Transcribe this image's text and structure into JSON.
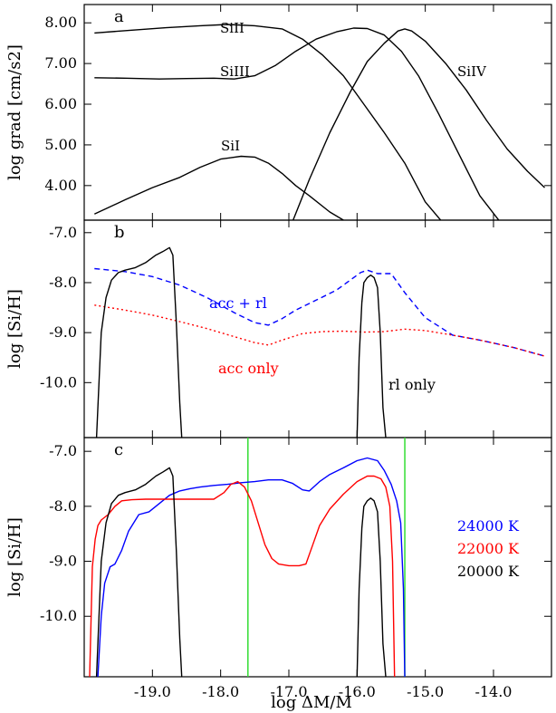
{
  "chart_data": [
    {
      "type": "line",
      "panel_label": "a",
      "ylabel": "log grad [cm/s2]",
      "xlim": [
        -20.0,
        -13.15
      ],
      "ylim": [
        3.15,
        8.45
      ],
      "yticks": [
        4.0,
        5.0,
        6.0,
        7.0,
        8.0
      ],
      "ytick_labels": [
        "4.00",
        "5.00",
        "6.00",
        "7.00",
        "8.00"
      ],
      "series": [
        {
          "name": "SiII",
          "color": "#000000",
          "x": [
            -19.85,
            -19.3,
            -18.8,
            -18.3,
            -17.9,
            -17.5,
            -17.1,
            -16.8,
            -16.5,
            -16.2,
            -15.9,
            -15.6,
            -15.3,
            -15.0,
            -14.75
          ],
          "y": [
            7.75,
            7.82,
            7.88,
            7.93,
            7.96,
            7.93,
            7.85,
            7.6,
            7.2,
            6.7,
            6.0,
            5.3,
            4.55,
            3.6,
            3.1
          ]
        },
        {
          "name": "SiIII",
          "color": "#000000",
          "x": [
            -19.85,
            -19.4,
            -18.9,
            -18.5,
            -18.1,
            -17.8,
            -17.5,
            -17.2,
            -16.9,
            -16.6,
            -16.3,
            -16.05,
            -15.85,
            -15.6,
            -15.35,
            -15.1,
            -14.8,
            -14.5,
            -14.2,
            -13.9
          ],
          "y": [
            6.65,
            6.64,
            6.62,
            6.63,
            6.64,
            6.62,
            6.7,
            6.95,
            7.3,
            7.6,
            7.78,
            7.87,
            7.86,
            7.7,
            7.3,
            6.7,
            5.75,
            4.75,
            3.75,
            3.1
          ]
        },
        {
          "name": "SiI",
          "color": "#000000",
          "x": [
            -19.85,
            -19.4,
            -19.0,
            -18.6,
            -18.3,
            -18.0,
            -17.7,
            -17.5,
            -17.3,
            -17.1,
            -16.9,
            -16.7,
            -16.4,
            -16.15
          ],
          "y": [
            3.3,
            3.65,
            3.95,
            4.2,
            4.45,
            4.65,
            4.72,
            4.7,
            4.55,
            4.3,
            4.0,
            3.75,
            3.35,
            3.1
          ]
        },
        {
          "name": "SiIV",
          "color": "#000000",
          "x": [
            -16.95,
            -16.7,
            -16.4,
            -16.1,
            -15.85,
            -15.6,
            -15.4,
            -15.3,
            -15.2,
            -15.0,
            -14.7,
            -14.4,
            -14.1,
            -13.8,
            -13.5,
            -13.25
          ],
          "y": [
            3.1,
            4.15,
            5.3,
            6.3,
            7.05,
            7.5,
            7.8,
            7.85,
            7.8,
            7.55,
            7.0,
            6.35,
            5.6,
            4.9,
            4.35,
            3.95
          ]
        }
      ],
      "labels": [
        "SiII",
        "SiIII",
        "SiI",
        "SiIV"
      ]
    },
    {
      "type": "line",
      "panel_label": "b",
      "ylabel": "log [Si/H]",
      "xlim": [
        -20.0,
        -13.15
      ],
      "ylim": [
        -11.1,
        -6.75
      ],
      "yticks": [
        -10.0,
        -9.0,
        -8.0,
        -7.0
      ],
      "ytick_labels": [
        "-10.0",
        "-9.0",
        "-8.0",
        "-7.0"
      ],
      "series": [
        {
          "name": "acc + rl",
          "color": "#0000ff",
          "dash": "dashed",
          "x": [
            -19.85,
            -19.4,
            -19.0,
            -18.6,
            -18.2,
            -17.8,
            -17.5,
            -17.3,
            -17.1,
            -16.9,
            -16.6,
            -16.3,
            -16.1,
            -15.95,
            -15.85,
            -15.7,
            -15.5,
            -15.3,
            -15.0,
            -14.6,
            -14.2,
            -13.7,
            -13.25
          ],
          "y": [
            -7.72,
            -7.78,
            -7.88,
            -8.05,
            -8.3,
            -8.6,
            -8.8,
            -8.85,
            -8.72,
            -8.55,
            -8.35,
            -8.15,
            -7.95,
            -7.8,
            -7.75,
            -7.82,
            -7.82,
            -8.2,
            -8.7,
            -9.05,
            -9.15,
            -9.3,
            -9.47
          ]
        },
        {
          "name": "acc only",
          "color": "#ff0000",
          "dash": "dotted",
          "x": [
            -19.85,
            -19.4,
            -19.0,
            -18.6,
            -18.2,
            -17.8,
            -17.5,
            -17.3,
            -17.1,
            -16.8,
            -16.5,
            -16.2,
            -15.9,
            -15.6,
            -15.3,
            -15.0,
            -14.6,
            -14.2,
            -13.7,
            -13.25
          ],
          "y": [
            -8.45,
            -8.55,
            -8.65,
            -8.78,
            -8.92,
            -9.08,
            -9.2,
            -9.25,
            -9.15,
            -9.02,
            -8.98,
            -8.97,
            -8.99,
            -8.98,
            -8.93,
            -8.96,
            -9.05,
            -9.15,
            -9.3,
            -9.47
          ]
        },
        {
          "name": "rl only",
          "color": "#000000",
          "dash": "solid",
          "x": [
            -19.82,
            -19.75,
            -19.68,
            -19.6,
            -19.5,
            -19.4,
            -19.25,
            -19.1,
            -18.95,
            -18.85,
            -18.75,
            -18.7,
            -18.65,
            -18.6,
            -18.57
          ],
          "y": [
            -11.1,
            -9.0,
            -8.3,
            -7.95,
            -7.8,
            -7.75,
            -7.7,
            -7.6,
            -7.45,
            -7.38,
            -7.3,
            -7.45,
            -8.8,
            -10.4,
            -11.1
          ]
        },
        {
          "name": "rl only (peak 2)",
          "color": "#000000",
          "dash": "solid",
          "x": [
            -16.0,
            -15.97,
            -15.93,
            -15.9,
            -15.85,
            -15.8,
            -15.75,
            -15.7,
            -15.66,
            -15.62,
            -15.58
          ],
          "y": [
            -11.1,
            -9.5,
            -8.4,
            -8.0,
            -7.9,
            -7.85,
            -7.9,
            -8.1,
            -9.0,
            -10.5,
            -11.1
          ]
        }
      ],
      "annotations": [
        "acc + rl",
        "acc only",
        "rl only"
      ]
    },
    {
      "type": "line",
      "panel_label": "c",
      "xlabel": "log  ΔM/M",
      "ylabel": "log [Si/H]",
      "xlim": [
        -20.0,
        -13.15
      ],
      "ylim": [
        -11.1,
        -6.75
      ],
      "yticks": [
        -10.0,
        -9.0,
        -8.0,
        -7.0
      ],
      "ytick_labels": [
        "-10.0",
        "-9.0",
        "-8.0",
        "-7.0"
      ],
      "xticks": [
        -19.0,
        -18.0,
        -17.0,
        -16.0,
        -15.0,
        -14.0
      ],
      "xtick_labels": [
        "-19.0",
        "-18.0",
        "-17.0",
        "-16.0",
        "-15.0",
        "-14.0"
      ],
      "vlines": [
        -17.6,
        -15.3
      ],
      "vline_color": "#33dd33",
      "series": [
        {
          "name": "24000 K",
          "color": "#0000ff",
          "x": [
            -19.8,
            -19.75,
            -19.7,
            -19.62,
            -19.55,
            -19.45,
            -19.35,
            -19.2,
            -19.05,
            -18.9,
            -18.75,
            -18.6,
            -18.45,
            -18.3,
            -18.1,
            -17.9,
            -17.7,
            -17.5,
            -17.3,
            -17.1,
            -16.95,
            -16.8,
            -16.7,
            -16.55,
            -16.4,
            -16.2,
            -16.0,
            -15.85,
            -15.7,
            -15.6,
            -15.5,
            -15.42,
            -15.36,
            -15.32,
            -15.3
          ],
          "y": [
            -11.1,
            -10.0,
            -9.4,
            -9.1,
            -9.05,
            -8.8,
            -8.45,
            -8.15,
            -8.1,
            -7.95,
            -7.8,
            -7.72,
            -7.68,
            -7.65,
            -7.62,
            -7.6,
            -7.57,
            -7.55,
            -7.52,
            -7.52,
            -7.58,
            -7.7,
            -7.72,
            -7.55,
            -7.42,
            -7.3,
            -7.17,
            -7.12,
            -7.17,
            -7.35,
            -7.6,
            -7.9,
            -8.3,
            -9.5,
            -11.1
          ]
        },
        {
          "name": "22000 K",
          "color": "#ff0000",
          "x": [
            -19.92,
            -19.88,
            -19.84,
            -19.8,
            -19.75,
            -19.65,
            -19.55,
            -19.45,
            -19.3,
            -19.1,
            -18.9,
            -18.7,
            -18.5,
            -18.3,
            -18.1,
            -17.95,
            -17.85,
            -17.75,
            -17.65,
            -17.55,
            -17.45,
            -17.35,
            -17.25,
            -17.15,
            -17.0,
            -16.85,
            -16.75,
            -16.65,
            -16.55,
            -16.4,
            -16.2,
            -16.0,
            -15.85,
            -15.75,
            -15.65,
            -15.58,
            -15.52,
            -15.48,
            -15.45
          ],
          "y": [
            -11.1,
            -9.1,
            -8.6,
            -8.35,
            -8.25,
            -8.15,
            -8.0,
            -7.9,
            -7.88,
            -7.87,
            -7.87,
            -7.87,
            -7.87,
            -7.87,
            -7.87,
            -7.75,
            -7.6,
            -7.55,
            -7.65,
            -7.9,
            -8.3,
            -8.7,
            -8.95,
            -9.05,
            -9.08,
            -9.08,
            -9.05,
            -8.7,
            -8.35,
            -8.05,
            -7.78,
            -7.55,
            -7.45,
            -7.45,
            -7.5,
            -7.65,
            -8.0,
            -9.0,
            -11.1
          ]
        },
        {
          "name": "20000 K",
          "color": "#000000",
          "x": [
            -19.82,
            -19.75,
            -19.68,
            -19.6,
            -19.5,
            -19.4,
            -19.25,
            -19.1,
            -18.95,
            -18.85,
            -18.75,
            -18.7,
            -18.65,
            -18.6,
            -18.57
          ],
          "y": [
            -11.1,
            -9.0,
            -8.3,
            -7.95,
            -7.8,
            -7.75,
            -7.7,
            -7.6,
            -7.45,
            -7.38,
            -7.3,
            -7.45,
            -8.8,
            -10.4,
            -11.1
          ]
        },
        {
          "name": "20000 K (peak 2)",
          "color": "#000000",
          "x": [
            -16.0,
            -15.97,
            -15.93,
            -15.9,
            -15.85,
            -15.8,
            -15.75,
            -15.7,
            -15.66,
            -15.62,
            -15.58
          ],
          "y": [
            -11.1,
            -9.5,
            -8.4,
            -8.0,
            -7.9,
            -7.85,
            -7.9,
            -8.1,
            -9.0,
            -10.5,
            -11.1
          ]
        }
      ],
      "legend": [
        {
          "label": "24000 K",
          "color": "#0000ff"
        },
        {
          "label": "22000 K",
          "color": "#ff0000"
        },
        {
          "label": "20000 K",
          "color": "#000000"
        }
      ]
    }
  ]
}
